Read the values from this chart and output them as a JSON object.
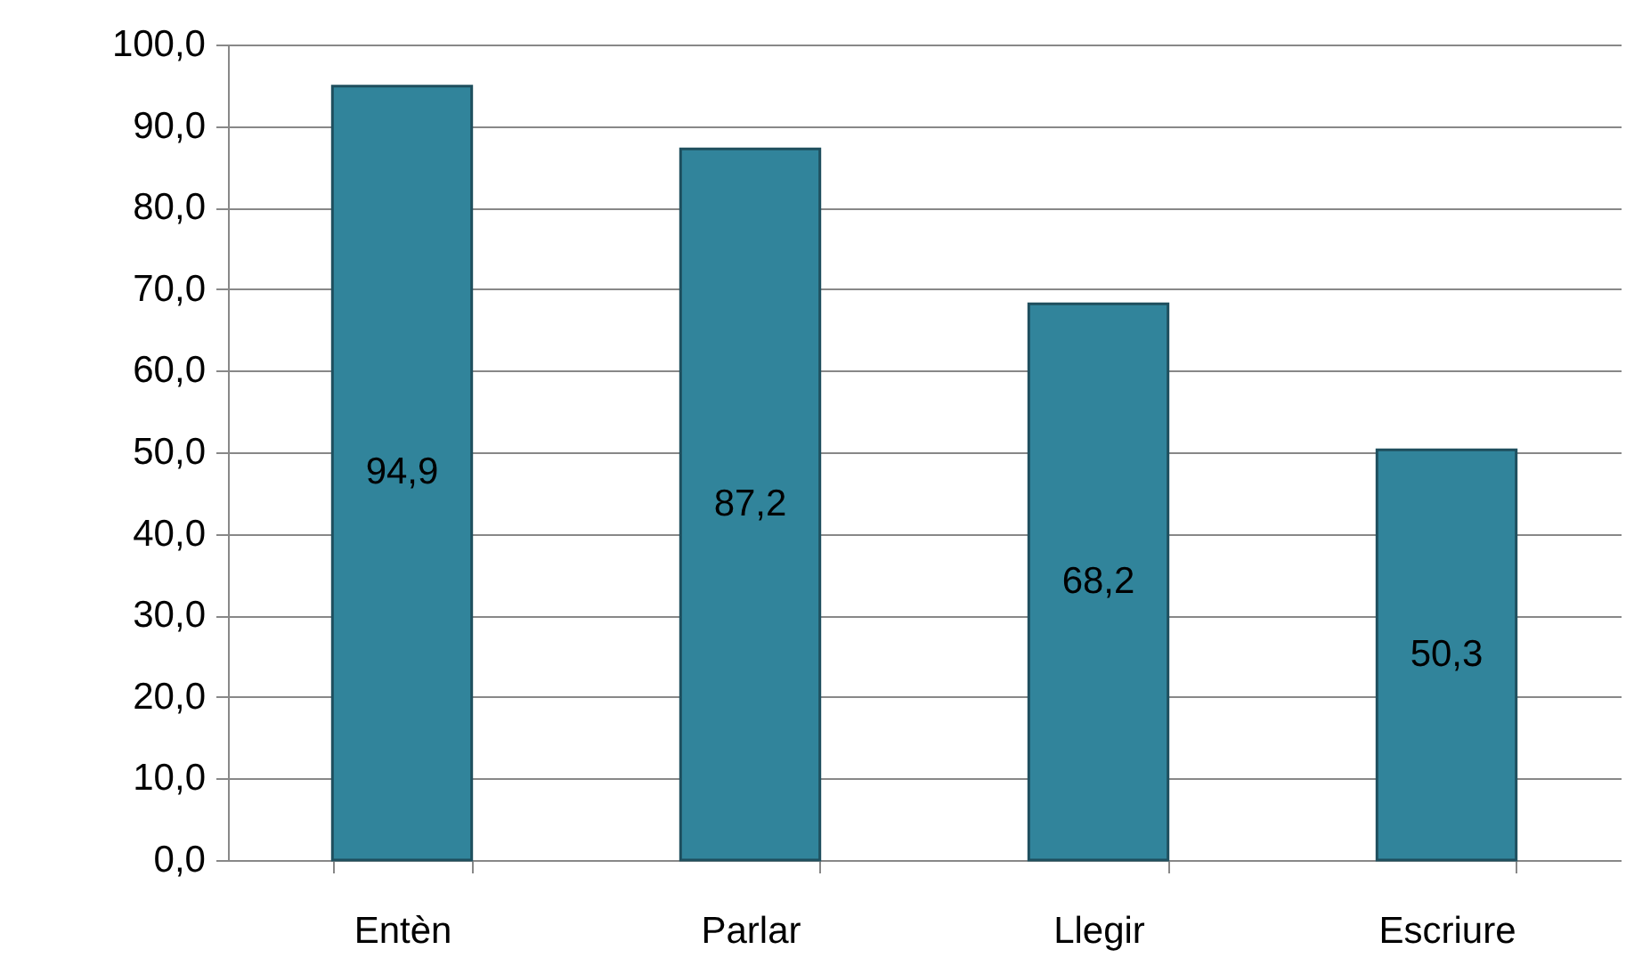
{
  "chart_data": {
    "type": "bar",
    "categories": [
      "Entèn",
      "Parlar",
      "Llegir",
      "Escriure"
    ],
    "values": [
      94.9,
      87.2,
      68.2,
      50.3
    ],
    "color": "#31849b",
    "value_labels": [
      "94,9",
      "87,2",
      "68,2",
      "50,3"
    ],
    "ylim": [
      0,
      100
    ],
    "yticks": [
      {
        "value": 0,
        "label": "0,0"
      },
      {
        "value": 10,
        "label": "10,0"
      },
      {
        "value": 20,
        "label": "20,0"
      },
      {
        "value": 30,
        "label": "30,0"
      },
      {
        "value": 40,
        "label": "40,0"
      },
      {
        "value": 50,
        "label": "50,0"
      },
      {
        "value": 60,
        "label": "60,0"
      },
      {
        "value": 70,
        "label": "70,0"
      },
      {
        "value": 80,
        "label": "80,0"
      },
      {
        "value": 90,
        "label": "90,0"
      },
      {
        "value": 100,
        "label": "100,0"
      }
    ],
    "grid": "y"
  }
}
